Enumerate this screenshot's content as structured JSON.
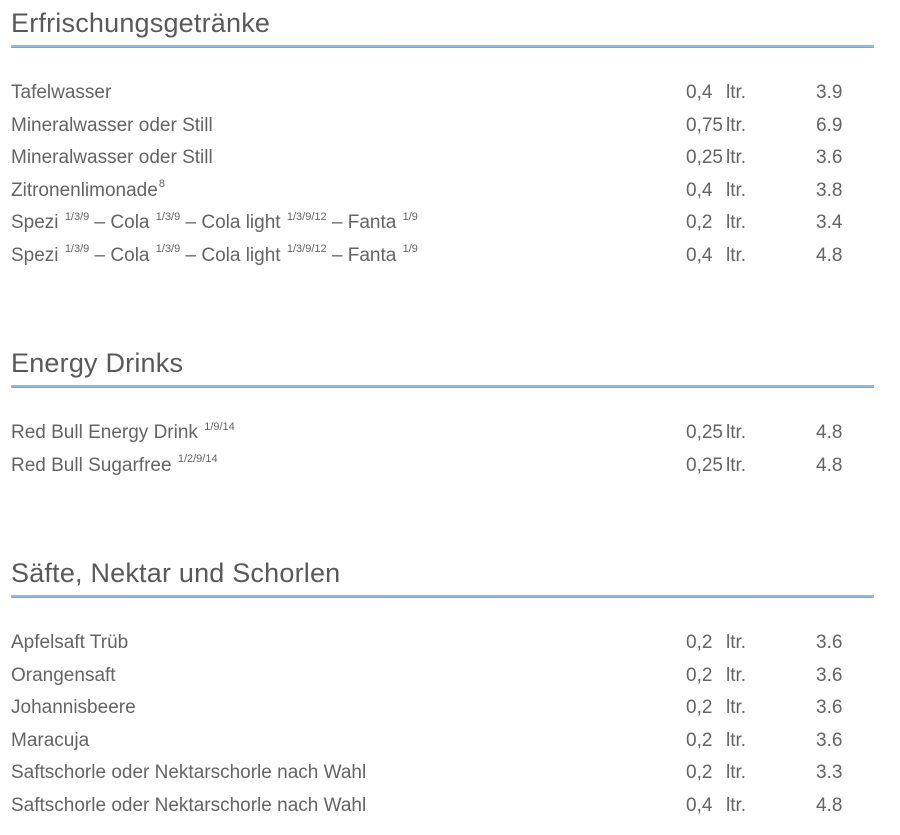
{
  "page": {
    "background": "#ffffff",
    "body_text_color": "#646464",
    "heading_text_color": "#595959",
    "accent_line_color": "#5b9bd5",
    "unit_label": "ltr."
  },
  "menu": {
    "sections": [
      {
        "title": "Erfrischungsgetränke",
        "items": [
          {
            "name_parts": [
              {
                "text": "Tafelwasser"
              }
            ],
            "qty": "0,4",
            "unit": "ltr.",
            "price": "3.9"
          },
          {
            "name_parts": [
              {
                "text": "Mineralwasser oder Still"
              }
            ],
            "qty": "0,75",
            "unit": "ltr.",
            "price": "6.9"
          },
          {
            "name_parts": [
              {
                "text": "Mineralwasser oder Still"
              }
            ],
            "qty": "0,25",
            "unit": "ltr.",
            "price": "3.6"
          },
          {
            "name_parts": [
              {
                "text": "Zitronenlimonade"
              },
              {
                "sup": "8"
              }
            ],
            "qty": "0,4",
            "unit": "ltr.",
            "price": "3.8"
          },
          {
            "name_parts": [
              {
                "text": "Spezi "
              },
              {
                "sup": "1/3/9"
              },
              {
                "text": " – Cola "
              },
              {
                "sup": "1/3/9"
              },
              {
                "text": " – Cola light "
              },
              {
                "sup": "1/3/9/12"
              },
              {
                "text": " – Fanta "
              },
              {
                "sup": "1/9"
              }
            ],
            "qty": "0,2",
            "unit": "ltr.",
            "price": "3.4"
          },
          {
            "name_parts": [
              {
                "text": "Spezi "
              },
              {
                "sup": "1/3/9"
              },
              {
                "text": " – Cola "
              },
              {
                "sup": "1/3/9"
              },
              {
                "text": " – Cola light "
              },
              {
                "sup": "1/3/9/12"
              },
              {
                "text": " – Fanta "
              },
              {
                "sup": "1/9"
              }
            ],
            "qty": "0,4",
            "unit": "ltr.",
            "price": "4.8"
          }
        ]
      },
      {
        "title": "Energy Drinks",
        "items": [
          {
            "name_parts": [
              {
                "text": "Red Bull Energy Drink "
              },
              {
                "sup": "1/9/14"
              }
            ],
            "qty": "0,25",
            "unit": "ltr.",
            "price": "4.8"
          },
          {
            "name_parts": [
              {
                "text": "Red Bull Sugarfree "
              },
              {
                "sup": "1/2/9/14"
              }
            ],
            "qty": "0,25",
            "unit": "ltr.",
            "price": "4.8"
          }
        ]
      },
      {
        "title": "Säfte, Nektar und Schorlen",
        "items": [
          {
            "name_parts": [
              {
                "text": "Apfelsaft Trüb"
              }
            ],
            "qty": "0,2",
            "unit": "ltr.",
            "price": "3.6"
          },
          {
            "name_parts": [
              {
                "text": "Orangensaft"
              }
            ],
            "qty": "0,2",
            "unit": "ltr.",
            "price": "3.6"
          },
          {
            "name_parts": [
              {
                "text": "Johannisbeere"
              }
            ],
            "qty": "0,2",
            "unit": "ltr.",
            "price": "3.6"
          },
          {
            "name_parts": [
              {
                "text": "Maracuja"
              }
            ],
            "qty": "0,2",
            "unit": "ltr.",
            "price": "3.6"
          },
          {
            "name_parts": [
              {
                "text": "Saftschorle oder Nektarschorle nach Wahl"
              }
            ],
            "qty": "0,2",
            "unit": "ltr.",
            "price": "3.3"
          },
          {
            "name_parts": [
              {
                "text": "Saftschorle oder Nektarschorle nach Wahl"
              }
            ],
            "qty": "0,4",
            "unit": "ltr.",
            "price": "4.8"
          }
        ]
      }
    ]
  }
}
